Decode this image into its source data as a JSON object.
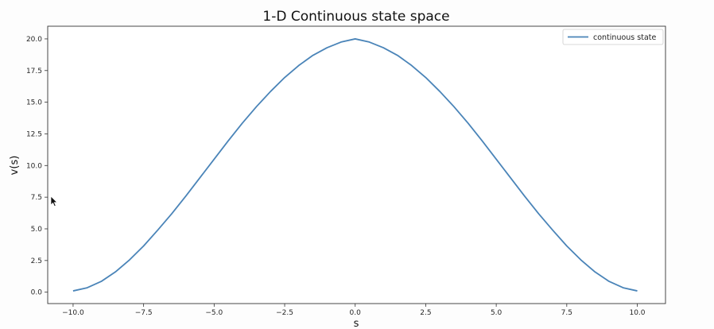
{
  "chart_data": {
    "type": "line",
    "title": "1-D Continuous state space",
    "xlabel": "s",
    "ylabel": "v(s)",
    "xlim": [
      -10.9,
      11.0
    ],
    "ylim": [
      -0.9,
      21.0
    ],
    "x_ticks": [
      -10.0,
      -7.5,
      -5.0,
      -2.5,
      0.0,
      2.5,
      5.0,
      7.5,
      10.0
    ],
    "x_tick_labels": [
      "−10.0",
      "−7.5",
      "−5.0",
      "−2.5",
      "0.0",
      "2.5",
      "5.0",
      "7.5",
      "10.0"
    ],
    "y_ticks": [
      0.0,
      2.5,
      5.0,
      7.5,
      10.0,
      12.5,
      15.0,
      17.5,
      20.0
    ],
    "y_tick_labels": [
      "0.0",
      "2.5",
      "5.0",
      "7.5",
      "10.0",
      "12.5",
      "15.0",
      "17.5",
      "20.0"
    ],
    "grid": false,
    "legend_position": "top-right",
    "series": [
      {
        "name": "continuous state",
        "color": "#4a84b8",
        "x": [
          -10,
          -9.5,
          -9,
          -8.5,
          -8,
          -7.5,
          -7,
          -6.5,
          -6,
          -5.5,
          -5,
          -4.5,
          -4,
          -3.5,
          -3,
          -2.5,
          -2,
          -1.5,
          -1,
          -0.5,
          0,
          0.5,
          1,
          1.5,
          2,
          2.5,
          3,
          3.5,
          4,
          4.5,
          5,
          5.5,
          6,
          6.5,
          7,
          7.5,
          8,
          8.5,
          9,
          9.5,
          10
        ],
        "y": [
          0.1,
          0.35,
          0.85,
          1.6,
          2.55,
          3.65,
          4.9,
          6.2,
          7.6,
          9.05,
          10.5,
          11.95,
          13.35,
          14.65,
          15.85,
          16.95,
          17.9,
          18.7,
          19.3,
          19.75,
          20.0,
          19.75,
          19.3,
          18.7,
          17.9,
          16.95,
          15.85,
          14.65,
          13.35,
          11.95,
          10.5,
          9.05,
          7.6,
          6.2,
          4.9,
          3.65,
          2.55,
          1.6,
          0.85,
          0.35,
          0.1
        ]
      }
    ]
  }
}
